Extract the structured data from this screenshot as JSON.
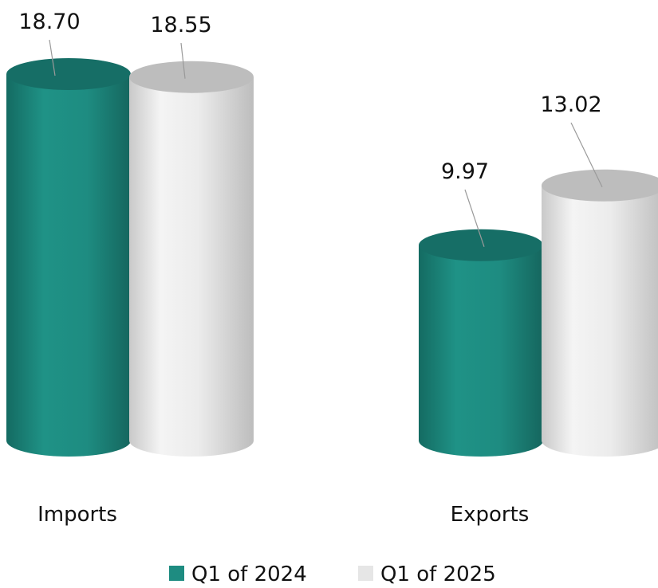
{
  "chart_data": {
    "type": "bar",
    "categories": [
      "Imports",
      "Exports"
    ],
    "series": [
      {
        "name": "Q1 of 2024",
        "color": "#1e8c81",
        "color_top": "#166e66",
        "values": [
          18.7,
          9.97
        ],
        "value_labels": [
          "18.70",
          "9.97"
        ]
      },
      {
        "name": "Q1 of 2025",
        "color": "#e3e3e3",
        "color_top": "#bdbdbd",
        "values": [
          18.55,
          13.02
        ],
        "value_labels": [
          "18.55",
          "13.02"
        ]
      }
    ],
    "title": "",
    "xlabel": "",
    "ylabel": "",
    "ylim": [
      0,
      18.7
    ],
    "grid": false,
    "legend": "bottom-center",
    "style": "3d-cylinder"
  }
}
